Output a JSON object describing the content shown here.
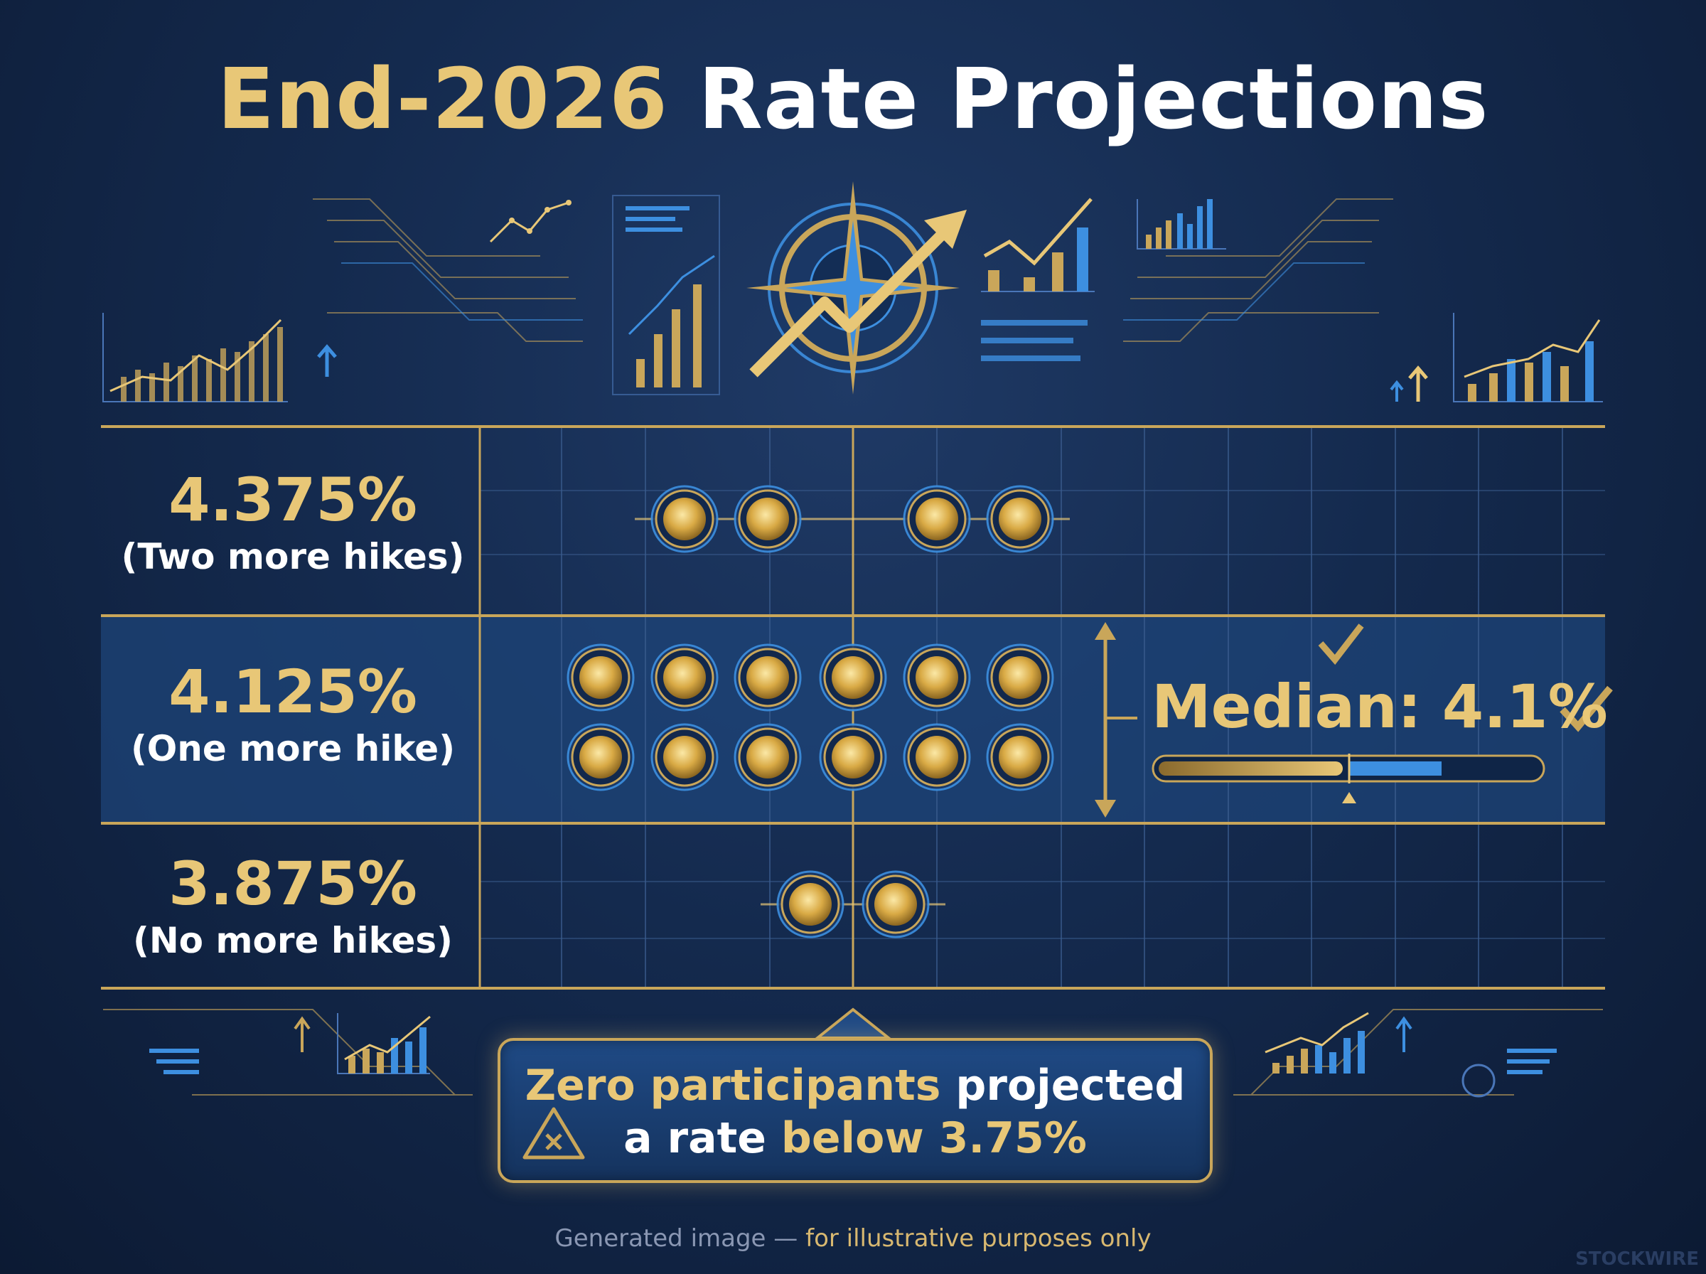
{
  "title": {
    "part1": "End-2026",
    "part2": "Rate Projections"
  },
  "chart_data": {
    "type": "scatter",
    "title": "End-2026 Rate Projections",
    "rows": [
      {
        "rate": "4.375%",
        "label": "(Two more hikes)",
        "dots": 4
      },
      {
        "rate": "4.125%",
        "label": "(One more hike)",
        "dots": 12
      },
      {
        "rate": "3.875%",
        "label": "(No more hikes)",
        "dots": 2
      }
    ],
    "median": {
      "label": "Median: 4.1%",
      "value": 4.1
    }
  },
  "callout": {
    "line1_gold": "Zero participants",
    "line1_white": "projected",
    "line2_white": "a rate",
    "line2_gold": "below 3.75%"
  },
  "footer": {
    "part1": "Generated image —",
    "part2": "for illustrative purposes only"
  },
  "watermark": "STOCKWIRE",
  "colors": {
    "gold": "#e8c777",
    "background": "#142a4e",
    "accent_blue": "#3d8fe0"
  }
}
